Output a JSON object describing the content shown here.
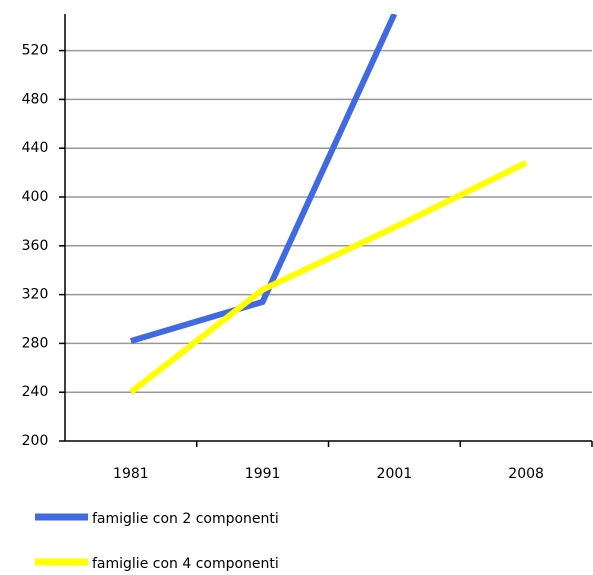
{
  "chart_data": {
    "type": "line",
    "categories": [
      "1981",
      "1991",
      "2001",
      "2008"
    ],
    "series": [
      {
        "name": "famiglie con 2 componenti",
        "color": "#4169e1",
        "values": [
          282,
          314,
          550,
          null
        ]
      },
      {
        "name": "famiglie con 4 componenti",
        "color": "#ffff00",
        "values": [
          240,
          324,
          375,
          428
        ]
      }
    ],
    "ylim": [
      200,
      550
    ],
    "yticks": [
      200,
      240,
      280,
      320,
      360,
      400,
      440,
      480,
      520
    ],
    "grid": true,
    "legend": "bottom"
  }
}
